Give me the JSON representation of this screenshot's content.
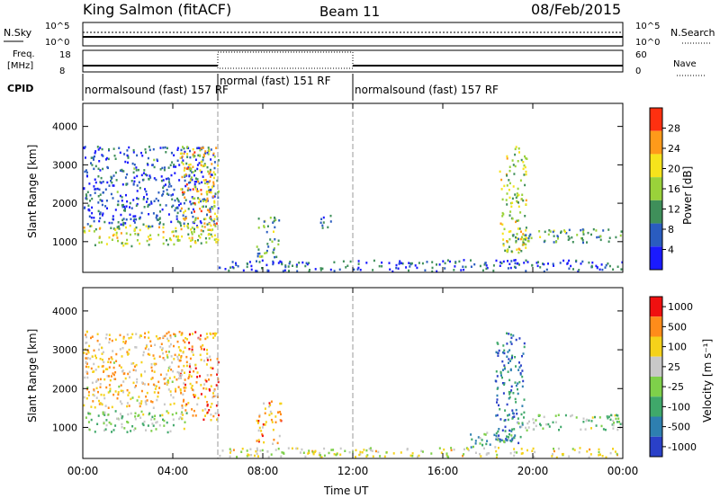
{
  "header": {
    "station": "King Salmon (fitACF)",
    "beam": "Beam 11",
    "date": "08/Feb/2015"
  },
  "status_panel": {
    "nsky_label": "N.Sky",
    "nsearch_label": "N.Search",
    "freq_label": "Freq.",
    "freq_unit": "[MHz]",
    "nave_label": "Nave",
    "cpid_label": "CPID",
    "noise_ticks_left": [
      "10^5",
      "10^0"
    ],
    "noise_ticks_right": [
      "10^5",
      "10^0"
    ],
    "freq_ticks": [
      "18",
      "8"
    ],
    "nave_ticks": [
      "60",
      "0"
    ],
    "cpid_segments": [
      {
        "label": "normalsound (fast) 157 RF",
        "start_h": 0,
        "end_h": 6
      },
      {
        "label": "normal (fast) 151 RF",
        "start_h": 6,
        "end_h": 12
      },
      {
        "label": "normalsound (fast) 157 RF",
        "start_h": 12,
        "end_h": 24
      }
    ]
  },
  "chart_data": [
    {
      "type": "heatmap",
      "title": "",
      "ylabel": "Slant Range [km]",
      "xlabel": "Time UT",
      "ylim": [
        200,
        4600
      ],
      "xlim": [
        0,
        24
      ],
      "yticks": [
        "1000",
        "2000",
        "3000",
        "4000"
      ],
      "colorbar": {
        "label": "Power [dB]",
        "ticks": [
          "4",
          "8",
          "12",
          "16",
          "20",
          "24",
          "28"
        ],
        "colors": [
          "#1a1aff",
          "#2a5cc0",
          "#3f8f5a",
          "#9ad23a",
          "#f6e31c",
          "#ff9a1a",
          "#ff3010"
        ]
      },
      "regions": [
        {
          "t0": 0.0,
          "t1": 6.0,
          "r0": 900,
          "r1": 1450,
          "level": 0.55
        },
        {
          "t0": 0.0,
          "t1": 6.0,
          "r0": 1400,
          "r1": 3500,
          "level": 0.18
        },
        {
          "t0": 4.3,
          "t1": 6.0,
          "r0": 1300,
          "r1": 3500,
          "level": 0.7
        },
        {
          "t0": 7.7,
          "t1": 8.7,
          "r0": 600,
          "r1": 1700,
          "level": 0.35
        },
        {
          "t0": 10.5,
          "t1": 11.0,
          "r0": 1300,
          "r1": 1800,
          "level": 0.2
        },
        {
          "t0": 18.5,
          "t1": 19.7,
          "r0": 700,
          "r1": 3500,
          "level": 0.55
        },
        {
          "t0": 19.0,
          "t1": 24.0,
          "r0": 1000,
          "r1": 1350,
          "level": 0.35
        },
        {
          "t0": 6.0,
          "t1": 24.0,
          "r0": 250,
          "r1": 550,
          "level": 0.15
        }
      ]
    },
    {
      "type": "heatmap",
      "title": "",
      "ylabel": "Slant Range [km]",
      "xlabel": "Time UT",
      "ylim": [
        200,
        4600
      ],
      "xlim": [
        0,
        24
      ],
      "yticks": [
        "1000",
        "2000",
        "3000",
        "4000"
      ],
      "colorbar": {
        "label": "Velocity [m s⁻¹]",
        "ticks": [
          "1000",
          "500",
          "100",
          "25",
          "-25",
          "-100",
          "-500",
          "-1000"
        ],
        "colors": [
          "#2a40c8",
          "#2e7fb0",
          "#3fa86a",
          "#7ed04a",
          "#c8c8c8",
          "#f5d21a",
          "#ff8c1a",
          "#f01010"
        ]
      },
      "regions": [
        {
          "t0": 0.0,
          "t1": 4.6,
          "r0": 900,
          "r1": 1450,
          "level": 0.45
        },
        {
          "t0": 4.3,
          "t1": 6.0,
          "r0": 1200,
          "r1": 3500,
          "level": 0.8
        },
        {
          "t0": 0.0,
          "t1": 4.5,
          "r0": 1500,
          "r1": 3500,
          "level": 0.7
        },
        {
          "t0": 7.7,
          "t1": 8.8,
          "r0": 600,
          "r1": 1700,
          "level": 0.75
        },
        {
          "t0": 18.3,
          "t1": 19.6,
          "r0": 600,
          "r1": 3500,
          "level": 0.15
        },
        {
          "t0": 19.0,
          "t1": 24.0,
          "r0": 950,
          "r1": 1350,
          "level": 0.45
        },
        {
          "t0": 17.0,
          "t1": 19.0,
          "r0": 500,
          "r1": 900,
          "level": 0.3
        },
        {
          "t0": 6.0,
          "t1": 24.0,
          "r0": 250,
          "r1": 500,
          "level": 0.6
        }
      ]
    }
  ],
  "x_axis": {
    "ticks": [
      "00:00",
      "04:00",
      "08:00",
      "12:00",
      "16:00",
      "20:00",
      "00:00"
    ],
    "label": "Time UT"
  }
}
